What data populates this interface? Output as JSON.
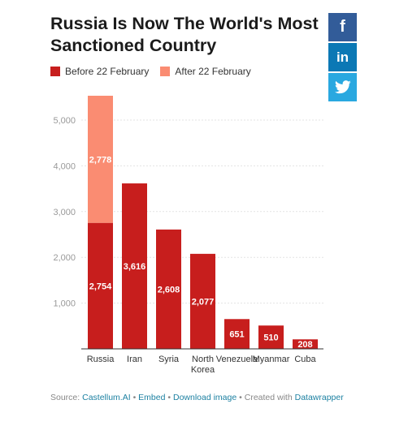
{
  "title": "Russia Is Now The World's Most Sanctioned Country",
  "share": {
    "facebook_glyph": "f",
    "linkedin_glyph": "in",
    "twitter_icon": "twitter-bird-icon"
  },
  "colors": {
    "before": "#c71e1d",
    "after": "#fa8c72",
    "share_facebook": "#325c99",
    "share_linkedin": "#0b78b5",
    "share_twitter": "#2aa8e0",
    "link": "#1d81a2"
  },
  "footer": {
    "source_label": "Source:",
    "source_link": "Castellum.AI",
    "sep1": "•",
    "embed": "Embed",
    "sep2": "•",
    "download": "Download image",
    "sep3": "•",
    "created": "Created with",
    "tool": "Datawrapper"
  },
  "chart_data": {
    "type": "bar",
    "stacked": true,
    "title": "Russia Is Now The World's Most Sanctioned Country",
    "categories": [
      "Russia",
      "Iran",
      "Syria",
      "North Korea",
      "Venezuela",
      "Myanmar",
      "Cuba"
    ],
    "category_lines": [
      [
        "Russia"
      ],
      [
        "Iran"
      ],
      [
        "Syria"
      ],
      [
        "North",
        "Korea"
      ],
      [
        "Venezuela"
      ],
      [
        "Myanmar"
      ],
      [
        "Cuba"
      ]
    ],
    "series": [
      {
        "name": "Before 22 February",
        "values": [
          2754,
          3616,
          2608,
          2077,
          651,
          510,
          208
        ]
      },
      {
        "name": "After 22 February",
        "values": [
          2778,
          0,
          0,
          0,
          0,
          0,
          0
        ]
      }
    ],
    "ylim": [
      0,
      5532
    ],
    "yticks": [
      1000,
      2000,
      3000,
      4000,
      5000
    ],
    "ytick_labels": [
      "1,000",
      "2,000",
      "3,000",
      "4,000",
      "5,000"
    ],
    "value_labels": [
      [
        "2,754",
        "3,616",
        "2,608",
        "2,077",
        "651",
        "510",
        "208"
      ],
      [
        "2,778",
        "",
        "",
        "",
        "",
        "",
        ""
      ]
    ],
    "xlabel": "",
    "ylabel": "",
    "grid": true,
    "legend_position": "top-left"
  }
}
